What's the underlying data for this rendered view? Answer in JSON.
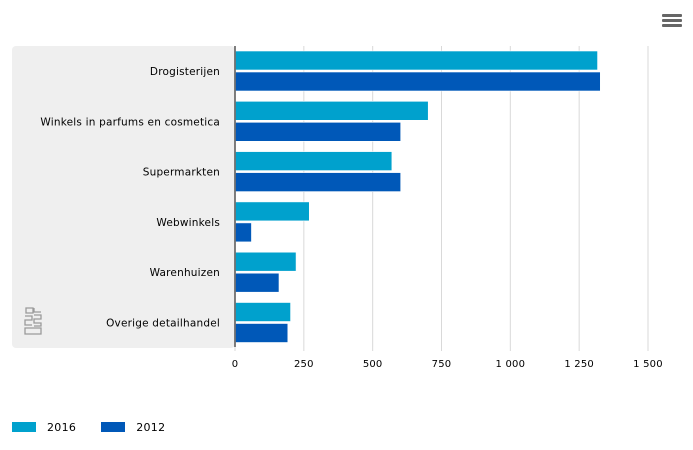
{
  "chart_data": {
    "type": "bar",
    "orientation": "horizontal",
    "categories": [
      "Drogisterijen",
      "Winkels in parfums en cosmetica",
      "Supermarkten",
      "Webwinkels",
      "Warenhuizen",
      "Overige detailhandel"
    ],
    "series": [
      {
        "name": "2016",
        "color": "#00a1cd",
        "values": [
          1315,
          700,
          568,
          268,
          220,
          200
        ]
      },
      {
        "name": "2012",
        "color": "#0058b8",
        "values": [
          1325,
          600,
          600,
          58,
          158,
          190
        ]
      }
    ],
    "xlim": [
      0,
      1500
    ],
    "xticks": [
      0,
      250,
      500,
      750,
      1000,
      1250,
      1500
    ],
    "xtick_labels": [
      "0",
      "250",
      "500",
      "750",
      "1 000",
      "1 250",
      "1 500"
    ],
    "grid": true,
    "legend_position": "bottom-left",
    "title": "",
    "xlabel": "",
    "ylabel": ""
  },
  "menu_icon": "hamburger-menu-icon",
  "logo_icon": "cbs-logo-icon",
  "colors": {
    "label_panel": "#efefef",
    "gridline": "#d9d9d9",
    "axis_line": "#555555"
  }
}
